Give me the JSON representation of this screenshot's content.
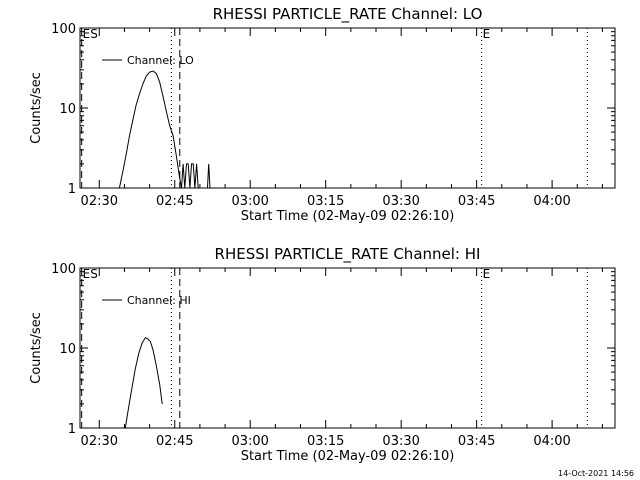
{
  "footer": {
    "timestamp": "14-Oct-2021 14:56"
  },
  "chart_data": [
    {
      "type": "line",
      "title": "RHESSI PARTICLE_RATE Channel: LO",
      "xlabel": "Start Time (02-May-09 02:26:10)",
      "ylabel": "Counts/sec",
      "y_scale": "log",
      "ylim": [
        1,
        100
      ],
      "xlim": [
        "02:26:10",
        "04:12:30"
      ],
      "x_ticks": [
        "02:30",
        "02:45",
        "03:00",
        "03:15",
        "03:30",
        "03:45",
        "04:00"
      ],
      "y_ticks": [
        "1",
        "10",
        "100"
      ],
      "legend": {
        "position": "top-left",
        "entries": [
          "Channel: LO"
        ]
      },
      "markers": [
        {
          "time": "02:26:30",
          "style": "dashed",
          "label": "ES"
        },
        {
          "time": "02:44:20",
          "style": "dotted",
          "label": ""
        },
        {
          "time": "02:46:00",
          "style": "dashed",
          "label": ""
        },
        {
          "time": "03:46:00",
          "style": "dotted",
          "label": "E"
        },
        {
          "time": "04:07:00",
          "style": "dotted",
          "label": ""
        }
      ],
      "series": [
        {
          "name": "Channel: LO",
          "x": [
            "02:34:00",
            "02:34:40",
            "02:35:20",
            "02:36:00",
            "02:36:40",
            "02:37:20",
            "02:38:00",
            "02:38:40",
            "02:39:20",
            "02:40:00",
            "02:40:40",
            "02:41:20",
            "02:42:00",
            "02:42:40",
            "02:43:20",
            "02:44:00",
            "02:44:40",
            "02:45:20",
            "02:45:40",
            "02:46:00",
            "02:46:20",
            "02:46:40",
            "02:47:00",
            "02:47:20",
            "02:47:40",
            "02:48:00",
            "02:48:20",
            "02:48:40",
            "02:49:00",
            "02:49:20",
            "02:49:40",
            "02:50:00",
            "02:51:30",
            "02:51:45",
            "02:52:00"
          ],
          "y": [
            1,
            1.6,
            2.6,
            4.5,
            7,
            11,
            15,
            20,
            25,
            28,
            29,
            27,
            21,
            14,
            9,
            6,
            4.5,
            2.5,
            1.8,
            1.3,
            1,
            2,
            1,
            2,
            2,
            1,
            2,
            2,
            1,
            2,
            1,
            1,
            1,
            2,
            1
          ]
        }
      ]
    },
    {
      "type": "line",
      "title": "RHESSI PARTICLE_RATE Channel: HI",
      "xlabel": "Start Time (02-May-09 02:26:10)",
      "ylabel": "Counts/sec",
      "y_scale": "log",
      "ylim": [
        1,
        100
      ],
      "xlim": [
        "02:26:10",
        "04:12:30"
      ],
      "x_ticks": [
        "02:30",
        "02:45",
        "03:00",
        "03:15",
        "03:30",
        "03:45",
        "04:00"
      ],
      "y_ticks": [
        "1",
        "10",
        "100"
      ],
      "legend": {
        "position": "top-left",
        "entries": [
          "Channel: HI"
        ]
      },
      "markers": [
        {
          "time": "02:26:30",
          "style": "dashed",
          "label": "ES"
        },
        {
          "time": "02:44:20",
          "style": "dotted",
          "label": ""
        },
        {
          "time": "02:46:00",
          "style": "dashed",
          "label": ""
        },
        {
          "time": "03:46:00",
          "style": "dotted",
          "label": "E"
        },
        {
          "time": "04:07:00",
          "style": "dotted",
          "label": ""
        }
      ],
      "series": [
        {
          "name": "Channel: HI",
          "x": [
            "02:35:10",
            "02:35:50",
            "02:36:30",
            "02:37:10",
            "02:37:50",
            "02:38:30",
            "02:39:10",
            "02:39:40",
            "02:40:10",
            "02:40:40",
            "02:41:20",
            "02:42:00",
            "02:42:30"
          ],
          "y": [
            1,
            1.8,
            3.2,
            5.5,
            8.5,
            11.5,
            13.5,
            13,
            12,
            9.5,
            6,
            3.5,
            2
          ]
        }
      ]
    }
  ]
}
